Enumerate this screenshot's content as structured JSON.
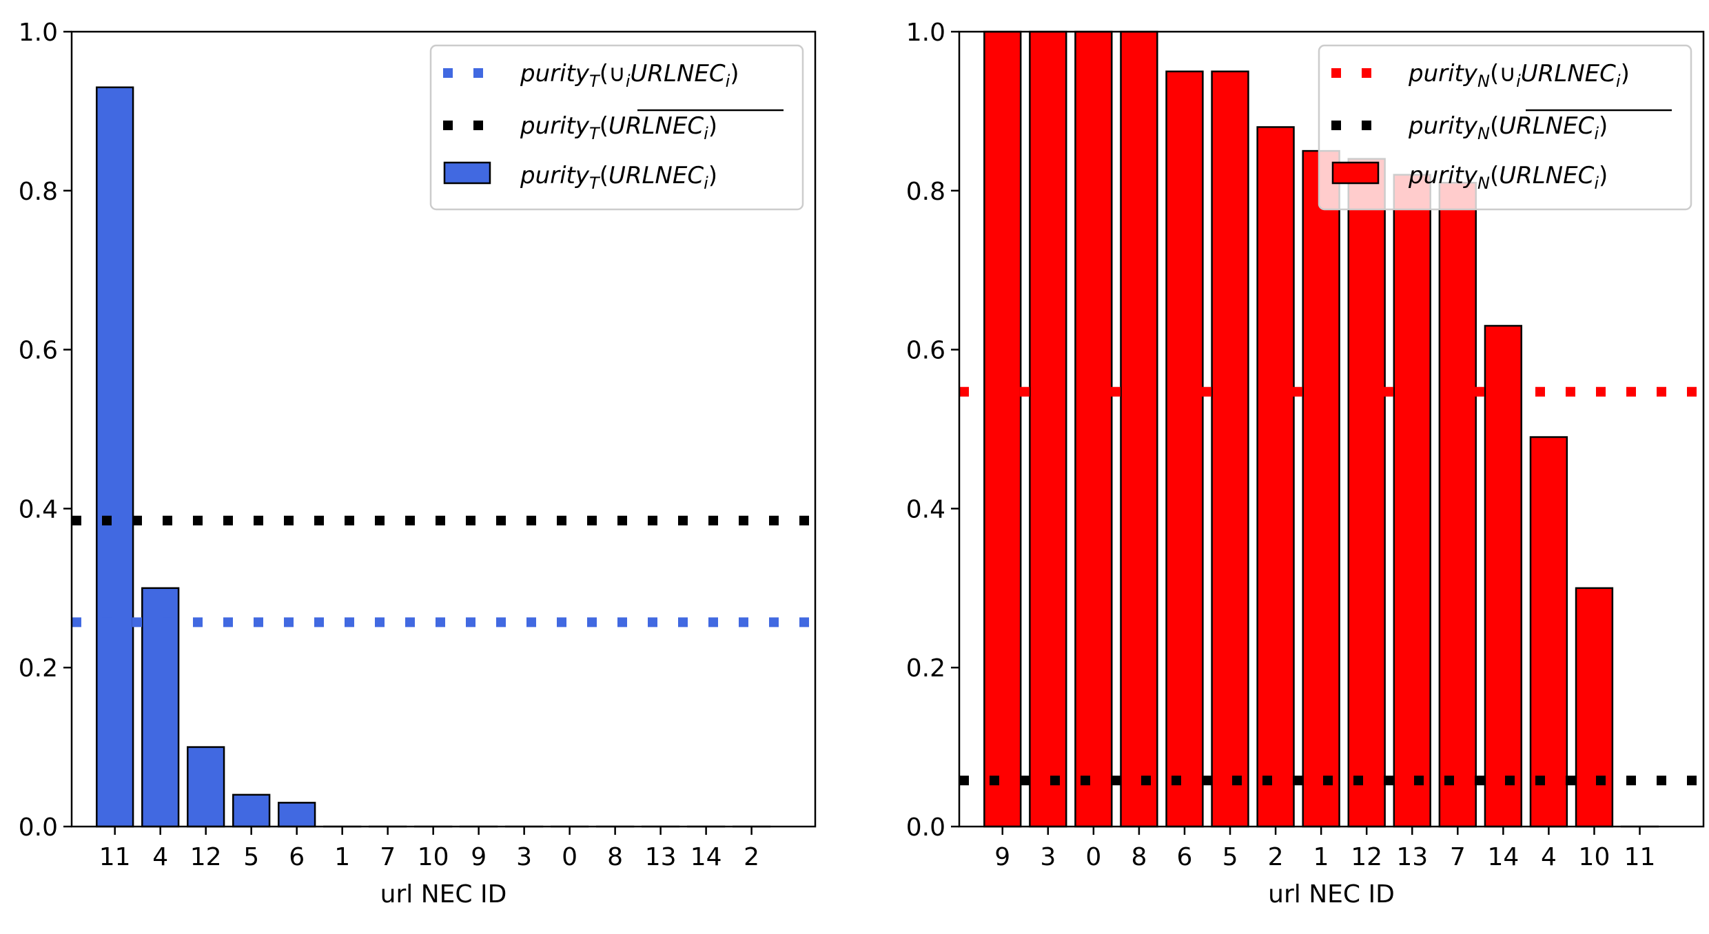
{
  "chart_data": [
    {
      "type": "bar",
      "xlabel": "url NEC ID",
      "ylabel": "",
      "ylim": [
        0,
        1.0
      ],
      "yticks": [
        "0.0",
        "0.2",
        "0.4",
        "0.6",
        "0.8",
        "1.0"
      ],
      "categories": [
        "11",
        "4",
        "12",
        "5",
        "6",
        "1",
        "7",
        "10",
        "9",
        "3",
        "0",
        "8",
        "13",
        "14",
        "2"
      ],
      "values": [
        0.93,
        0.3,
        0.1,
        0.04,
        0.03,
        0,
        0,
        0,
        0,
        0,
        0,
        0,
        0,
        0,
        0
      ],
      "bar_color": "#4169e1",
      "legend_position": "top-right",
      "hlines": [
        {
          "value": 0.257,
          "color": "#4169e1",
          "style": "dotted",
          "legend": {
            "base": "purity",
            "sub": "T",
            "arg_pre": "(∪",
            "arg_sub": "i",
            "arg_main": "URLNEC",
            "arg_sub2": "i",
            "arg_post": ")",
            "overline": false
          }
        },
        {
          "value": 0.385,
          "color": "#000000",
          "style": "dotted",
          "legend": {
            "base": "purity",
            "sub": "T",
            "arg_pre": "(",
            "arg_sub": "i",
            "arg_main": "URLNEC",
            "arg_sub2": "i",
            "arg_post": ")",
            "overline": true
          }
        }
      ],
      "bar_legend": {
        "base": "purity",
        "sub": "T",
        "arg_main": "URLNEC",
        "arg_sub2": "i"
      }
    },
    {
      "type": "bar",
      "xlabel": "url NEC ID",
      "ylabel": "",
      "ylim": [
        0,
        1.0
      ],
      "yticks": [
        "0.0",
        "0.2",
        "0.4",
        "0.6",
        "0.8",
        "1.0"
      ],
      "categories": [
        "9",
        "3",
        "0",
        "8",
        "6",
        "5",
        "2",
        "1",
        "12",
        "13",
        "7",
        "14",
        "4",
        "10",
        "11"
      ],
      "values": [
        1.0,
        1.0,
        1.0,
        1.0,
        0.95,
        0.95,
        0.88,
        0.85,
        0.84,
        0.82,
        0.81,
        0.63,
        0.49,
        0.3,
        0
      ],
      "bar_color": "#ff0000",
      "legend_position": "top-right",
      "hlines": [
        {
          "value": 0.547,
          "color": "#ff0000",
          "style": "dotted",
          "legend": {
            "base": "purity",
            "sub": "N",
            "arg_pre": "(∪",
            "arg_sub": "i",
            "arg_main": "URLNEC",
            "arg_sub2": "i",
            "arg_post": ")",
            "overline": false
          }
        },
        {
          "value": 0.058,
          "color": "#000000",
          "style": "dotted",
          "legend": {
            "base": "purity",
            "sub": "N",
            "arg_pre": "(",
            "arg_sub": "i",
            "arg_main": "URLNEC",
            "arg_sub2": "i",
            "arg_post": ")",
            "overline": true
          }
        }
      ],
      "bar_legend": {
        "base": "purity",
        "sub": "N",
        "arg_main": "URLNEC",
        "arg_sub2": "i"
      }
    }
  ]
}
